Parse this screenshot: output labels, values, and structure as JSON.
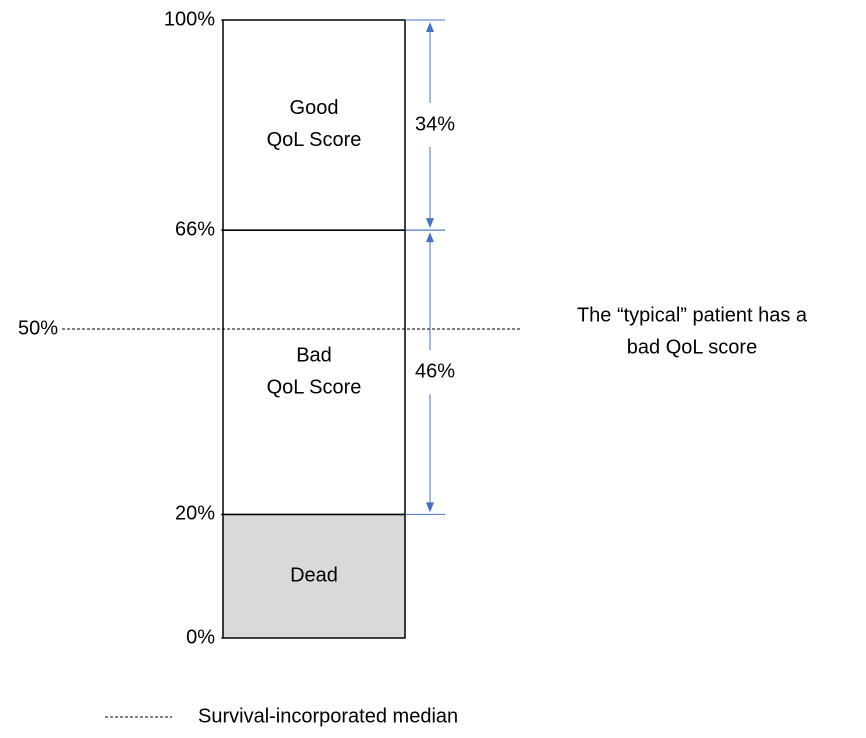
{
  "chart_data": {
    "type": "stacked_column",
    "series": [
      {
        "name": "Dead",
        "color": "#d9d9d9",
        "values": [
          20
        ]
      },
      {
        "name": "Bad QoL Score",
        "color": "#ffffff",
        "values": [
          46
        ],
        "value_labels": [
          "46%"
        ]
      },
      {
        "name": "Good QoL Score",
        "color": "#ffffff",
        "values": [
          34
        ],
        "value_labels": [
          "34%"
        ]
      }
    ],
    "ylim": [
      0,
      100
    ],
    "yticks": [
      {
        "value": 0,
        "label": "0%"
      },
      {
        "value": 20,
        "label": "20%"
      },
      {
        "value": 66,
        "label": "66%"
      },
      {
        "value": 100,
        "label": "100%"
      }
    ],
    "reference_line": {
      "value": 50,
      "label": "50%",
      "legend": "Survival-incorporated median",
      "annotation": [
        "The “typical” patient has a",
        "bad QoL score"
      ]
    },
    "bracket_color": "#4472c4"
  }
}
